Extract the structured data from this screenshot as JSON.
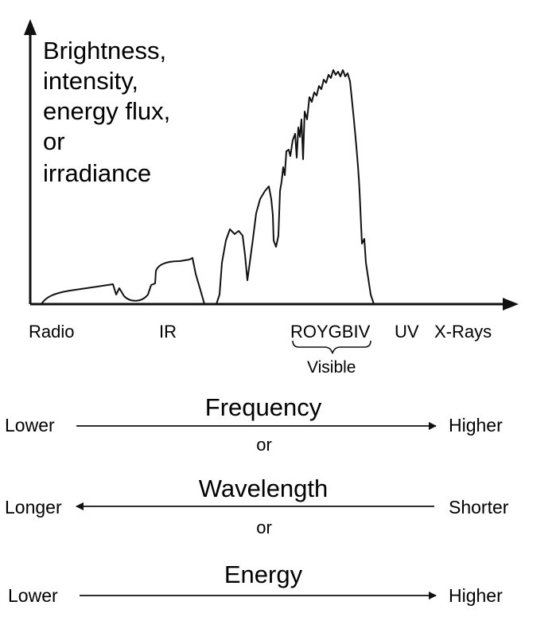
{
  "chart": {
    "y_axis_label_lines": [
      "Brightness,",
      "intensity,",
      "energy flux,",
      "or",
      "irradiance"
    ],
    "bands": {
      "radio": "Radio",
      "ir": "IR",
      "visible_colors": "ROYGBIV",
      "uv": "UV",
      "xrays": "X-Rays"
    },
    "visible_label": "Visible"
  },
  "scales": [
    {
      "title": "Frequency",
      "left": "Lower",
      "right": "Higher",
      "arrow": "right",
      "connector": "or"
    },
    {
      "title": "Wavelength",
      "left": "Longer",
      "right": "Shorter",
      "arrow": "left",
      "connector": "or"
    },
    {
      "title": "Energy",
      "left": "Lower",
      "right": "Higher",
      "arrow": "right"
    }
  ],
  "colors": {
    "ink": "#111111",
    "background": "#ffffff"
  }
}
